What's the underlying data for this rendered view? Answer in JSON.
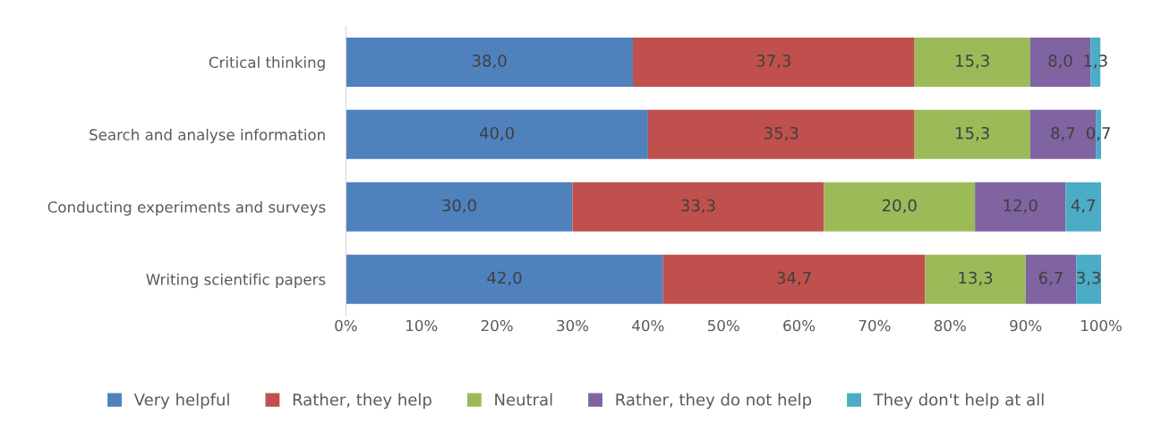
{
  "chart_data": {
    "type": "bar",
    "orientation": "horizontal",
    "stacked": true,
    "legend": "bottom",
    "grid": false,
    "categories": [
      "Critical thinking",
      "Search and analyse information",
      "Conducting experiments and surveys",
      "Writing scientific papers"
    ],
    "xlim": [
      0,
      100
    ],
    "xticks": [
      {
        "value": 0,
        "label": "0%"
      },
      {
        "value": 10,
        "label": "10%"
      },
      {
        "value": 20,
        "label": "20%"
      },
      {
        "value": 30,
        "label": "30%"
      },
      {
        "value": 40,
        "label": "40%"
      },
      {
        "value": 50,
        "label": "50%"
      },
      {
        "value": 60,
        "label": "60%"
      },
      {
        "value": 70,
        "label": "70%"
      },
      {
        "value": 80,
        "label": "80%"
      },
      {
        "value": 90,
        "label": "90%"
      },
      {
        "value": 100,
        "label": "100%"
      }
    ],
    "series": [
      {
        "name": "Very helpful",
        "color": "#4f81bd",
        "values": [
          38.0,
          40.0,
          30.0,
          42.0
        ],
        "value_labels": [
          "38,0",
          "40,0",
          "30,0",
          "42,0"
        ]
      },
      {
        "name": "Rather, they help",
        "color": "#c0504d",
        "values": [
          37.3,
          35.3,
          33.3,
          34.7
        ],
        "value_labels": [
          "37,3",
          "35,3",
          "33,3",
          "34,7"
        ]
      },
      {
        "name": "Neutral",
        "color": "#9bbb59",
        "values": [
          15.3,
          15.3,
          20.0,
          13.3
        ],
        "value_labels": [
          "15,3",
          "15,3",
          "20,0",
          "13,3"
        ]
      },
      {
        "name": "Rather, they do not help",
        "color": "#8064a2",
        "values": [
          8.0,
          8.7,
          12.0,
          6.7
        ],
        "value_labels": [
          "8,0",
          "8,7",
          "12,0",
          "6,7"
        ]
      },
      {
        "name": "They don't help at all",
        "color": "#4bacc6",
        "values": [
          1.3,
          0.7,
          4.7,
          3.3
        ],
        "value_labels": [
          "1,3",
          "0,7",
          "4,7",
          "3,3"
        ]
      }
    ]
  }
}
